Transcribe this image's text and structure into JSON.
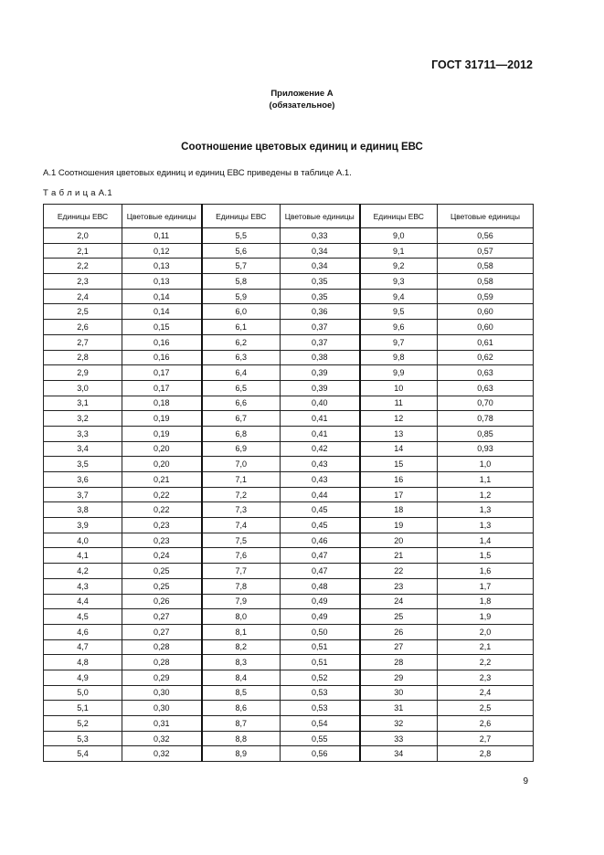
{
  "document_id": "ГОСТ 31711—2012",
  "appendix_title": "Приложение А",
  "appendix_subtitle": "(обязательное)",
  "heading": "Соотношение цветовых единиц и единиц ЕВС",
  "intro": "А.1  Соотношения цветовых единиц и единиц ЕВС приведены в таблице А.1.",
  "table_caption": "Т а б л и ц а  А.1",
  "table": {
    "headers": [
      "Единицы ЕВС",
      "Цветовые единицы",
      "Единицы ЕВС",
      "Цветовые единицы",
      "Единицы ЕВС",
      "Цветовые единицы"
    ],
    "rows": [
      [
        "2,0",
        "0,11",
        "5,5",
        "0,33",
        "9,0",
        "0,56"
      ],
      [
        "2,1",
        "0,12",
        "5,6",
        "0,34",
        "9,1",
        "0,57"
      ],
      [
        "2,2",
        "0,13",
        "5,7",
        "0,34",
        "9,2",
        "0,58"
      ],
      [
        "2,3",
        "0,13",
        "5,8",
        "0,35",
        "9,3",
        "0,58"
      ],
      [
        "2,4",
        "0,14",
        "5,9",
        "0,35",
        "9,4",
        "0,59"
      ],
      [
        "2,5",
        "0,14",
        "6,0",
        "0,36",
        "9,5",
        "0,60"
      ],
      [
        "2,6",
        "0,15",
        "6,1",
        "0,37",
        "9,6",
        "0,60"
      ],
      [
        "2,7",
        "0,16",
        "6,2",
        "0,37",
        "9,7",
        "0,61"
      ],
      [
        "2,8",
        "0,16",
        "6,3",
        "0,38",
        "9,8",
        "0,62"
      ],
      [
        "2,9",
        "0,17",
        "6,4",
        "0,39",
        "9,9",
        "0,63"
      ],
      [
        "3,0",
        "0,17",
        "6,5",
        "0,39",
        "10",
        "0,63"
      ],
      [
        "3,1",
        "0,18",
        "6,6",
        "0,40",
        "11",
        "0,70"
      ],
      [
        "3,2",
        "0,19",
        "6,7",
        "0,41",
        "12",
        "0,78"
      ],
      [
        "3,3",
        "0,19",
        "6,8",
        "0,41",
        "13",
        "0,85"
      ],
      [
        "3,4",
        "0,20",
        "6,9",
        "0,42",
        "14",
        "0,93"
      ],
      [
        "3,5",
        "0,20",
        "7,0",
        "0,43",
        "15",
        "1,0"
      ],
      [
        "3,6",
        "0,21",
        "7,1",
        "0,43",
        "16",
        "1,1"
      ],
      [
        "3,7",
        "0,22",
        "7,2",
        "0,44",
        "17",
        "1,2"
      ],
      [
        "3,8",
        "0,22",
        "7,3",
        "0,45",
        "18",
        "1,3"
      ],
      [
        "3,9",
        "0,23",
        "7,4",
        "0,45",
        "19",
        "1,3"
      ],
      [
        "4,0",
        "0,23",
        "7,5",
        "0,46",
        "20",
        "1,4"
      ],
      [
        "4,1",
        "0,24",
        "7,6",
        "0,47",
        "21",
        "1,5"
      ],
      [
        "4,2",
        "0,25",
        "7,7",
        "0,47",
        "22",
        "1,6"
      ],
      [
        "4,3",
        "0,25",
        "7,8",
        "0,48",
        "23",
        "1,7"
      ],
      [
        "4,4",
        "0,26",
        "7,9",
        "0,49",
        "24",
        "1,8"
      ],
      [
        "4,5",
        "0,27",
        "8,0",
        "0,49",
        "25",
        "1,9"
      ],
      [
        "4,6",
        "0,27",
        "8,1",
        "0,50",
        "26",
        "2,0"
      ],
      [
        "4,7",
        "0,28",
        "8,2",
        "0,51",
        "27",
        "2,1"
      ],
      [
        "4,8",
        "0,28",
        "8,3",
        "0,51",
        "28",
        "2,2"
      ],
      [
        "4,9",
        "0,29",
        "8,4",
        "0,52",
        "29",
        "2,3"
      ],
      [
        "5,0",
        "0,30",
        "8,5",
        "0,53",
        "30",
        "2,4"
      ],
      [
        "5,1",
        "0,30",
        "8,6",
        "0,53",
        "31",
        "2,5"
      ],
      [
        "5,2",
        "0,31",
        "8,7",
        "0,54",
        "32",
        "2,6"
      ],
      [
        "5,3",
        "0,32",
        "8,8",
        "0,55",
        "33",
        "2,7"
      ],
      [
        "5,4",
        "0,32",
        "8,9",
        "0,56",
        "34",
        "2,8"
      ]
    ]
  },
  "page_number": "9"
}
